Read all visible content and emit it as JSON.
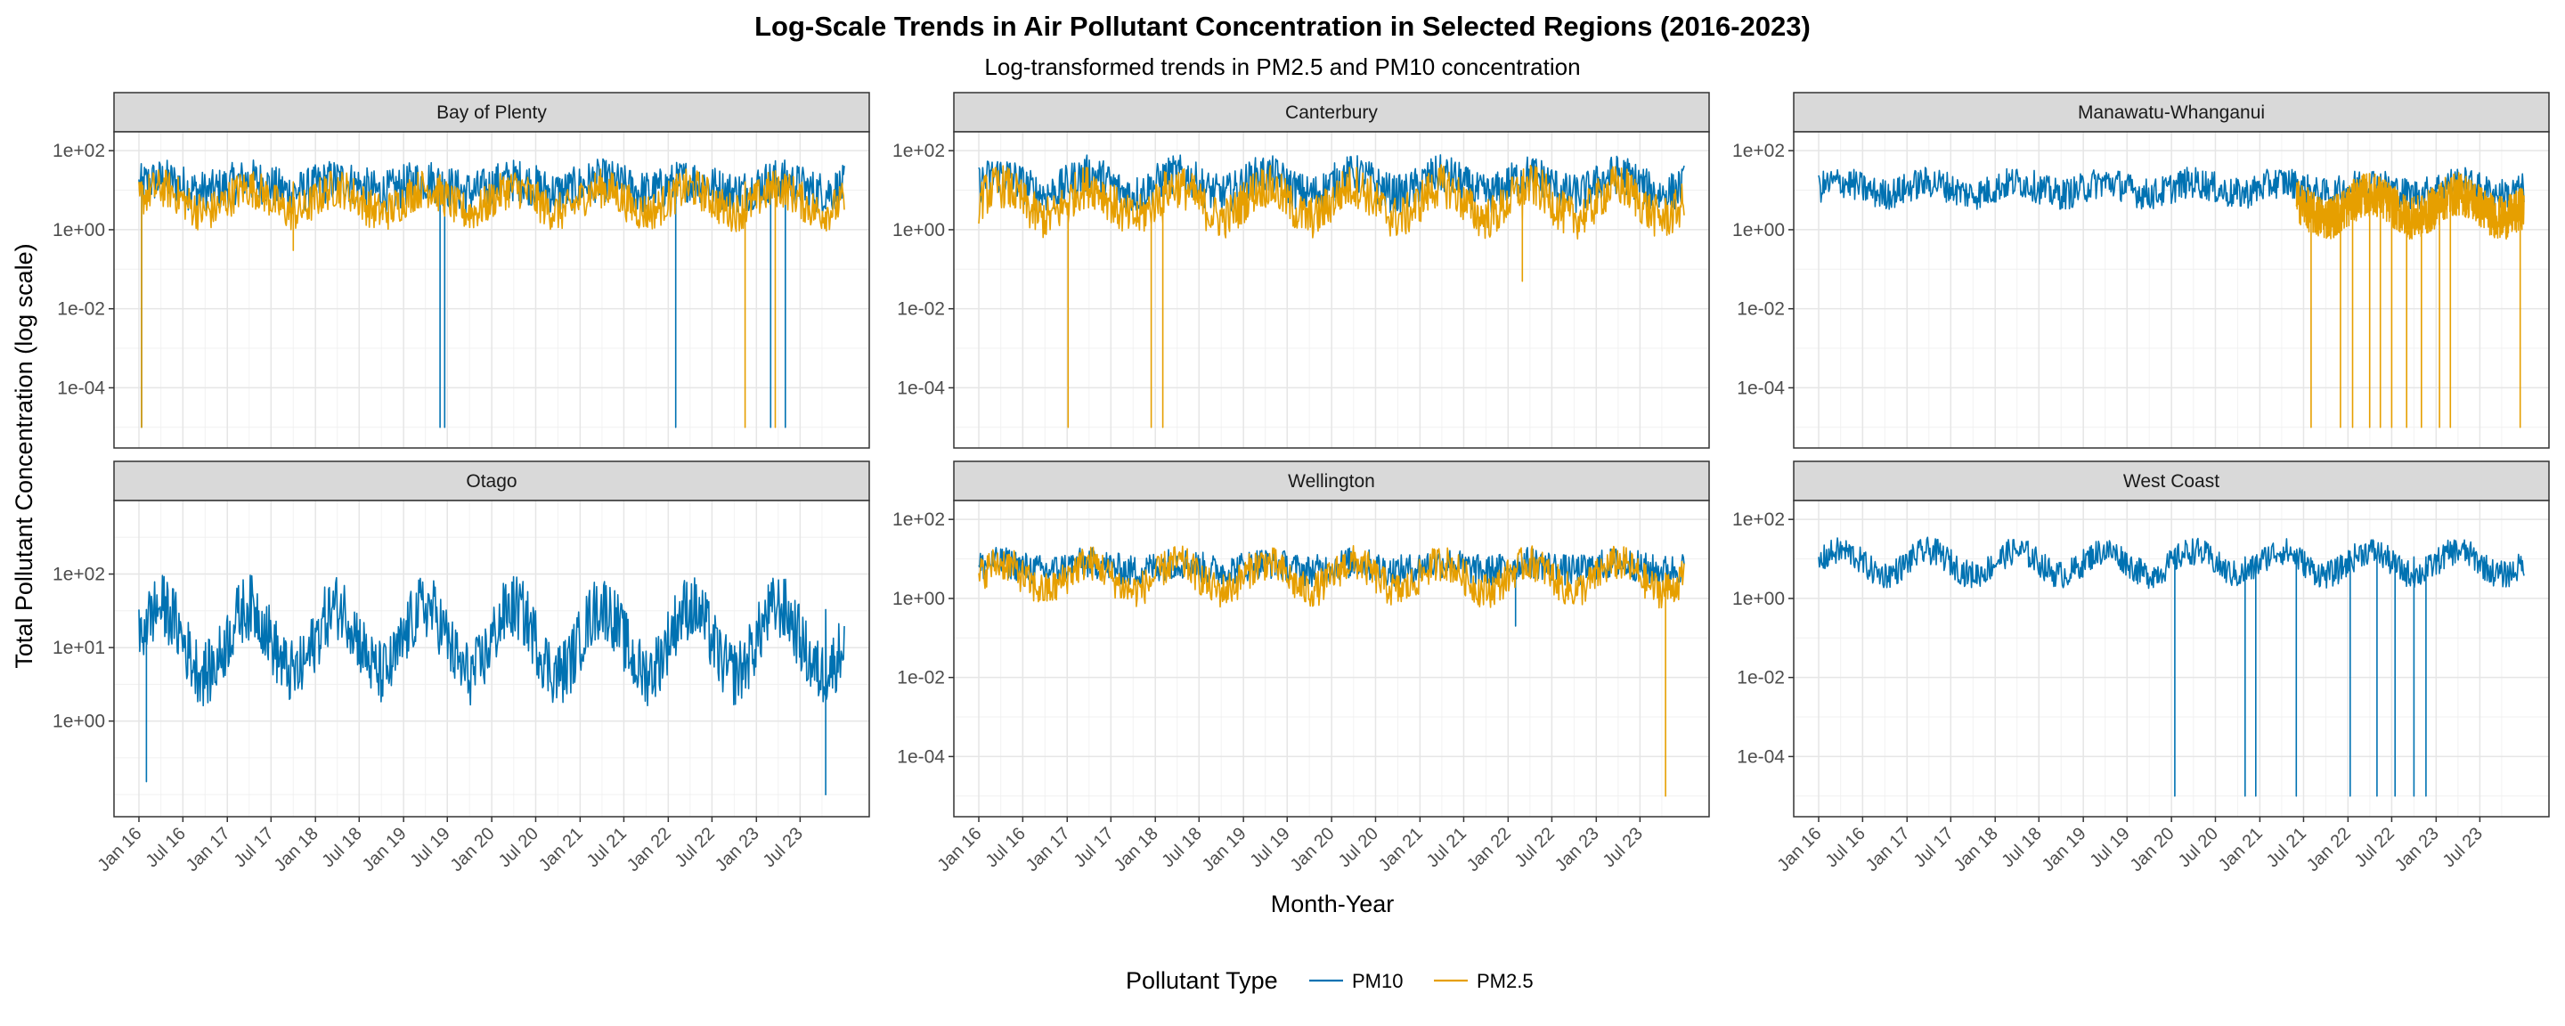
{
  "chart_data": {
    "type": "line",
    "title": "Log-Scale Trends in Air Pollutant Concentration in Selected Regions (2016-2023)",
    "subtitle": "Log-transformed trends in PM2.5 and PM10 concentration",
    "xlabel": "Month-Year",
    "ylabel": "Total Pollutant Concentration (log scale)",
    "y_scale": "log10",
    "grid": true,
    "legend": {
      "title": "Pollutant Type",
      "position": "bottom",
      "entries": [
        {
          "name": "PM10",
          "color": "#0072B2"
        },
        {
          "name": "PM2.5",
          "color": "#E69F00"
        }
      ]
    },
    "x_range": [
      "2016-01-01",
      "2023-12-31"
    ],
    "x_ticks": [
      "Jan 16",
      "Jul 16",
      "Jan 17",
      "Jul 17",
      "Jan 18",
      "Jul 18",
      "Jan 19",
      "Jul 19",
      "Jan 20",
      "Jul 20",
      "Jan 21",
      "Jul 21",
      "Jan 22",
      "Jul 22",
      "Jan 23",
      "Jul 23"
    ],
    "panels": [
      {
        "name": "Bay of Plenty",
        "ylim": [
          3e-06,
          300
        ],
        "y_ticks": [
          "1e+02",
          "1e+00",
          "1e-02",
          "1e-04"
        ],
        "series": [
          {
            "name": "PM10",
            "color": "#0072B2",
            "baseline_log10": 1.1,
            "band_log10": 0.55,
            "seasonal_amp": 0.15,
            "dips": [
              {
                "date": "2016-01-12",
                "value": 1e-05
              },
              {
                "date": "2019-06-01",
                "value": 1e-05
              },
              {
                "date": "2019-06-20",
                "value": 1e-05
              },
              {
                "date": "2022-02-01",
                "value": 1e-05
              },
              {
                "date": "2023-03-01",
                "value": 1e-05
              },
              {
                "date": "2023-05-01",
                "value": 1e-05
              }
            ]
          },
          {
            "name": "PM2.5",
            "color": "#E69F00",
            "baseline_log10": 0.75,
            "band_log10": 0.5,
            "seasonal_amp": 0.3,
            "dips": [
              {
                "date": "2016-01-12",
                "value": 1e-05
              },
              {
                "date": "2017-10-01",
                "value": 0.3
              },
              {
                "date": "2022-11-15",
                "value": 1e-05
              },
              {
                "date": "2023-03-20",
                "value": 1e-05
              }
            ]
          }
        ]
      },
      {
        "name": "Canterbury",
        "ylim": [
          3e-06,
          300
        ],
        "y_ticks": [
          "1e+02",
          "1e+00",
          "1e-02",
          "1e-04"
        ],
        "series": [
          {
            "name": "PM10",
            "color": "#0072B2",
            "baseline_log10": 1.15,
            "band_log10": 0.5,
            "seasonal_amp": 0.25,
            "dips": []
          },
          {
            "name": "PM2.5",
            "color": "#E69F00",
            "baseline_log10": 0.7,
            "band_log10": 0.55,
            "seasonal_amp": 0.4,
            "dips": [
              {
                "date": "2017-01-05",
                "value": 1e-05
              },
              {
                "date": "2017-12-15",
                "value": 1e-05
              },
              {
                "date": "2018-02-01",
                "value": 1e-05
              },
              {
                "date": "2022-03-01",
                "value": 0.05
              }
            ]
          }
        ]
      },
      {
        "name": "Manawatu-Whanganui",
        "ylim": [
          3e-06,
          300
        ],
        "y_ticks": [
          "1e+02",
          "1e+00",
          "1e-02",
          "1e-04"
        ],
        "series": [
          {
            "name": "PM10",
            "color": "#0072B2",
            "baseline_log10": 1.05,
            "band_log10": 0.4,
            "seasonal_amp": 0.15,
            "dips": []
          },
          {
            "name": "PM2.5",
            "color": "#E69F00",
            "start": "2021-06-01",
            "baseline_log10": 0.6,
            "band_log10": 0.55,
            "seasonal_amp": 0.3,
            "dips": [
              {
                "date": "2021-08-01",
                "value": 1e-05
              },
              {
                "date": "2021-12-01",
                "value": 1e-05
              },
              {
                "date": "2022-01-20",
                "value": 1e-05
              },
              {
                "date": "2022-04-01",
                "value": 1e-05
              },
              {
                "date": "2022-05-15",
                "value": 1e-05
              },
              {
                "date": "2022-07-01",
                "value": 1e-05
              },
              {
                "date": "2022-09-01",
                "value": 1e-05
              },
              {
                "date": "2022-11-01",
                "value": 1e-05
              },
              {
                "date": "2023-01-15",
                "value": 1e-05
              },
              {
                "date": "2023-03-01",
                "value": 1e-05
              },
              {
                "date": "2023-12-15",
                "value": 1e-05
              }
            ]
          }
        ]
      },
      {
        "name": "Otago",
        "ylim": [
          0.05,
          1000
        ],
        "y_ticks": [
          "1e+02",
          "1e+01",
          "1e+00"
        ],
        "series": [
          {
            "name": "PM10",
            "color": "#0072B2",
            "baseline_log10": 1.1,
            "band_log10": 0.45,
            "seasonal_amp": 0.45,
            "dips": [
              {
                "date": "2016-02-01",
                "value": 0.15
              },
              {
                "date": "2023-10-15",
                "value": 0.1
              }
            ]
          }
        ]
      },
      {
        "name": "Wellington",
        "ylim": [
          3e-06,
          300
        ],
        "y_ticks": [
          "1e+02",
          "1e+00",
          "1e-02",
          "1e-04"
        ],
        "series": [
          {
            "name": "PM10",
            "color": "#0072B2",
            "baseline_log10": 0.8,
            "band_log10": 0.4,
            "seasonal_amp": 0.1,
            "dips": [
              {
                "date": "2022-02-01",
                "value": 0.2
              }
            ]
          },
          {
            "name": "PM2.5",
            "color": "#E69F00",
            "baseline_log10": 0.55,
            "band_log10": 0.45,
            "seasonal_amp": 0.35,
            "dips": [
              {
                "date": "2023-10-15",
                "value": 1e-05
              }
            ]
          }
        ]
      },
      {
        "name": "West Coast",
        "ylim": [
          3e-06,
          300
        ],
        "y_ticks": [
          "1e+02",
          "1e+00",
          "1e-02",
          "1e-04"
        ],
        "series": [
          {
            "name": "PM10",
            "color": "#0072B2",
            "baseline_log10": 0.9,
            "band_log10": 0.35,
            "seasonal_amp": 0.3,
            "dips": [
              {
                "date": "2020-01-15",
                "value": 1e-05
              },
              {
                "date": "2020-11-01",
                "value": 1e-05
              },
              {
                "date": "2020-12-15",
                "value": 1e-05
              },
              {
                "date": "2021-06-01",
                "value": 1e-05
              },
              {
                "date": "2022-01-10",
                "value": 1e-05
              },
              {
                "date": "2022-05-01",
                "value": 1e-05
              },
              {
                "date": "2022-07-15",
                "value": 1e-05
              },
              {
                "date": "2022-10-01",
                "value": 1e-05
              },
              {
                "date": "2022-11-20",
                "value": 1e-05
              }
            ]
          }
        ]
      }
    ]
  }
}
